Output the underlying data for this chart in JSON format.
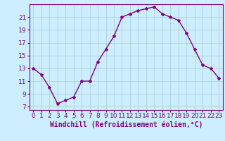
{
  "x": [
    0,
    1,
    2,
    3,
    4,
    5,
    6,
    7,
    8,
    9,
    10,
    11,
    12,
    13,
    14,
    15,
    16,
    17,
    18,
    19,
    20,
    21,
    22,
    23
  ],
  "y": [
    13,
    12,
    10,
    7.5,
    8,
    8.5,
    11,
    11,
    14,
    16,
    18,
    21,
    21.5,
    22,
    22.3,
    22.6,
    21.5,
    21,
    20.5,
    18.5,
    16,
    13.5,
    13,
    11.5
  ],
  "line_color": "#800080",
  "marker": "*",
  "marker_color": "#800080",
  "bg_color": "#cceeff",
  "grid_color": "#aacccc",
  "xlabel": "Windchill (Refroidissement éolien,°C)",
  "xlim": [
    -0.5,
    23.5
  ],
  "ylim": [
    6.5,
    23.0
  ],
  "yticks": [
    7,
    9,
    11,
    13,
    15,
    17,
    19,
    21
  ],
  "xticks": [
    0,
    1,
    2,
    3,
    4,
    5,
    6,
    7,
    8,
    9,
    10,
    11,
    12,
    13,
    14,
    15,
    16,
    17,
    18,
    19,
    20,
    21,
    22,
    23
  ],
  "xlabel_fontsize": 7,
  "tick_fontsize": 6.5,
  "marker_size": 3,
  "line_width": 1.0,
  "text_color": "#800080"
}
